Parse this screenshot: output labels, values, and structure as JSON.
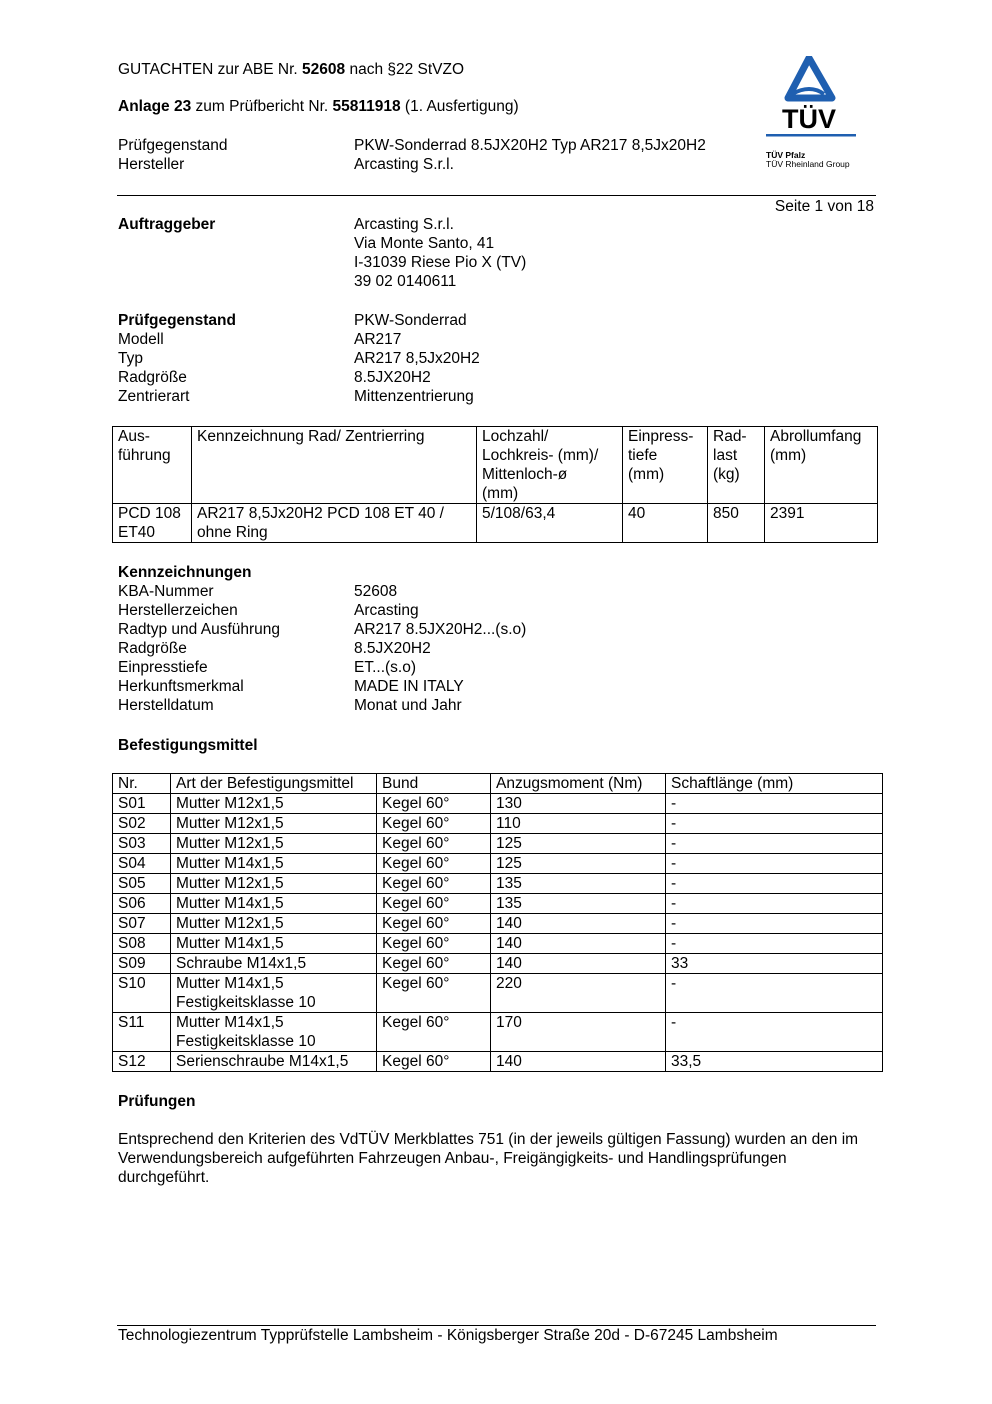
{
  "header": {
    "line1_pre": "GUTACHTEN zur ABE Nr. ",
    "line1_num": "52608",
    "line1_post": " nach §22 StVZO",
    "line2_pre": "Anlage 23",
    "line2_mid": " zum Prüfbericht Nr. ",
    "line2_num": "55811918",
    "line2_post": " (1. Ausfertigung)",
    "rows": [
      {
        "k": "Prüfgegenstand",
        "v": "PKW-Sonderrad 8.5JX20H2 Typ AR217 8,5Jx20H2"
      },
      {
        "k": "Hersteller",
        "v": "Arcasting S.r.l."
      }
    ]
  },
  "logo": {
    "text": "TÜV",
    "sub1": "TÜV Pfalz",
    "sub2": "TÜV Rheinland Group",
    "color": "#1f5fb0"
  },
  "page_number": "Seite 1 von 18",
  "auftraggeber": {
    "label": "Auftraggeber",
    "lines": [
      "Arcasting S.r.l.",
      "Via Monte Santo, 41",
      "I-31039 Riese Pio X (TV)",
      "39 02 0140611"
    ]
  },
  "pruefgegenstand": {
    "rows": [
      {
        "k": "Prüfgegenstand",
        "v": "PKW-Sonderrad"
      },
      {
        "k": "Modell",
        "v": "AR217"
      },
      {
        "k": "Typ",
        "v": "AR217 8,5Jx20H2"
      },
      {
        "k": "Radgröße",
        "v": "8.5JX20H2"
      },
      {
        "k": "Zentrierart",
        "v": "Mittenzentrierung"
      }
    ]
  },
  "wheel_table": {
    "headers": [
      "Aus-\nführung",
      "Kennzeichnung Rad/ Zentrierring",
      "Lochzahl/\nLochkreis- (mm)/\nMittenloch-ø\n(mm)",
      "Einpress-\ntiefe\n(mm)",
      "Rad-\nlast\n(kg)",
      "Abrollumfang\n(mm)"
    ],
    "rows": [
      [
        "PCD 108\nET40",
        "AR217 8,5Jx20H2 PCD 108 ET 40 /\nohne Ring",
        "5/108/63,4",
        "40",
        "850",
        "2391"
      ]
    ]
  },
  "kennzeichnungen": {
    "title": "Kennzeichnungen",
    "rows": [
      {
        "k": "KBA-Nummer",
        "v": "52608"
      },
      {
        "k": "Herstellerzeichen",
        "v": "Arcasting"
      },
      {
        "k": "Radtyp und Ausführung",
        "v": "AR217 8.5JX20H2...(s.o)"
      },
      {
        "k": "Radgröße",
        "v": "8.5JX20H2"
      },
      {
        "k": "Einpresstiefe",
        "v": "ET...(s.o)"
      },
      {
        "k": "Herkunftsmerkmal",
        "v": "MADE IN ITALY"
      },
      {
        "k": "Herstelldatum",
        "v": "Monat und Jahr"
      }
    ]
  },
  "befestigung": {
    "title": "Befestigungsmittel",
    "headers": [
      "Nr.",
      "Art der Befestigungsmittel",
      "Bund",
      "Anzugsmoment (Nm)",
      "Schaftlänge (mm)"
    ],
    "rows": [
      [
        "S01",
        "Mutter M12x1,5",
        "Kegel 60°",
        "130",
        "-"
      ],
      [
        "S02",
        "Mutter M12x1,5",
        "Kegel 60°",
        "110",
        "-"
      ],
      [
        "S03",
        "Mutter M12x1,5",
        "Kegel 60°",
        "125",
        "-"
      ],
      [
        "S04",
        "Mutter M14x1,5",
        "Kegel 60°",
        "125",
        "-"
      ],
      [
        "S05",
        "Mutter M12x1,5",
        "Kegel 60°",
        "135",
        "-"
      ],
      [
        "S06",
        "Mutter M14x1,5",
        "Kegel 60°",
        "135",
        "-"
      ],
      [
        "S07",
        "Mutter M12x1,5",
        "Kegel 60°",
        "140",
        "-"
      ],
      [
        "S08",
        "Mutter M14x1,5",
        "Kegel 60°",
        "140",
        "-"
      ],
      [
        "S09",
        "Schraube M14x1,5",
        "Kegel 60°",
        "140",
        "33"
      ],
      [
        "S10",
        "Mutter M14x1,5\nFestigkeitsklasse 10",
        "Kegel 60°",
        "220",
        "-"
      ],
      [
        "S11",
        "Mutter M14x1,5\nFestigkeitsklasse 10",
        "Kegel 60°",
        "170",
        "-"
      ],
      [
        "S12",
        "Serienschraube M14x1,5",
        "Kegel 60°",
        "140",
        "33,5"
      ]
    ]
  },
  "pruefungen": {
    "title": "Prüfungen",
    "text": "Entsprechend den Kriterien des VdTÜV Merkblattes 751 (in der jeweils gültigen Fassung) wurden an den im Verwendungsbereich aufgeführten Fahrzeugen Anbau-, Freigängigkeits- und Handlingsprüfungen durchgeführt."
  },
  "footer": "Technologiezentrum Typprüfstelle Lambsheim - Königsberger Straße 20d - D-67245 Lambsheim"
}
